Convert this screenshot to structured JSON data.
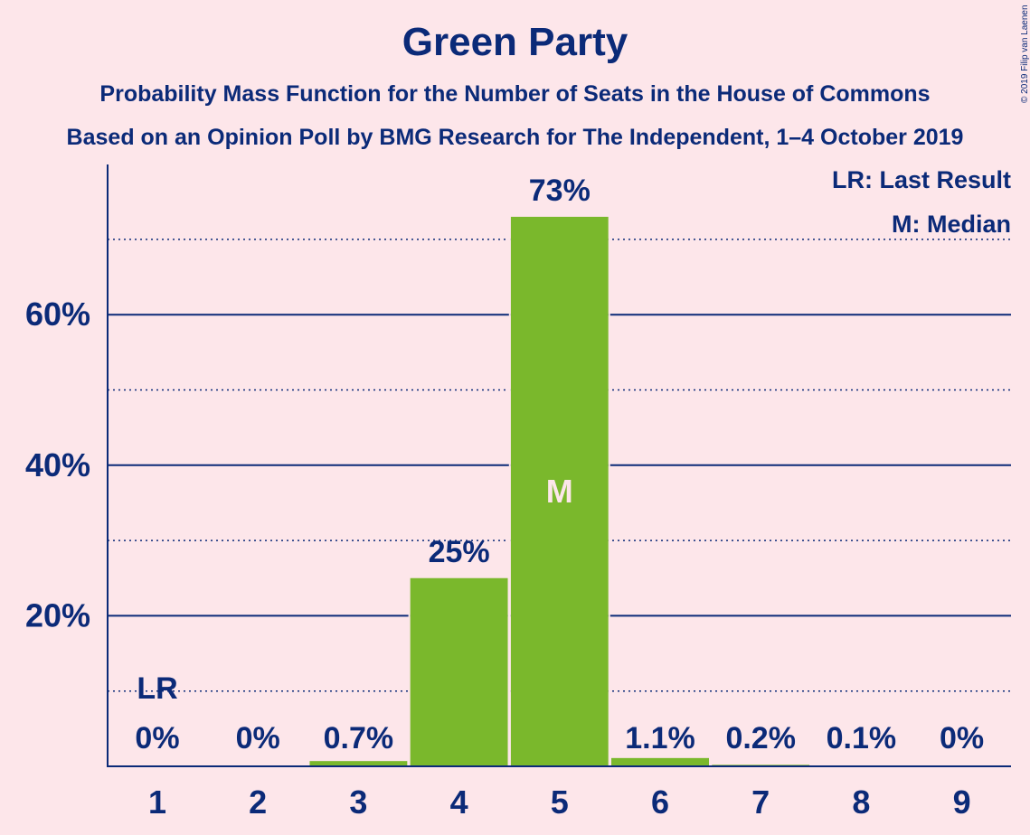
{
  "header": {
    "title": "Green Party",
    "subtitle": "Probability Mass Function for the Number of Seats in the House of Commons",
    "source": "Based on an Opinion Poll by BMG Research for The Independent, 1–4 October 2019",
    "copyright": "© 2019 Filip van Laenen"
  },
  "legend": {
    "last_result": "LR: Last Result",
    "median": "M: Median"
  },
  "colors": {
    "background": "#fde6ea",
    "bar": "#7ab82c",
    "text": "#0b2a78"
  },
  "chart_data": {
    "type": "bar",
    "title": "Green Party",
    "categories": [
      "1",
      "2",
      "3",
      "4",
      "5",
      "6",
      "7",
      "8",
      "9"
    ],
    "values": [
      0,
      0,
      0.7,
      25,
      73,
      1.1,
      0.2,
      0.1,
      0
    ],
    "value_labels": [
      "0%",
      "0%",
      "0.7%",
      "25%",
      "73%",
      "1.1%",
      "0.2%",
      "0.1%",
      "0%"
    ],
    "y_ticks": [
      20,
      40,
      60
    ],
    "y_tick_labels": [
      "20%",
      "40%",
      "60%"
    ],
    "ylim": [
      0,
      80
    ],
    "grid": true,
    "last_result_index": 0,
    "last_result_label": "LR",
    "median_index": 4,
    "median_label": "M",
    "legend_position": "top-right"
  }
}
